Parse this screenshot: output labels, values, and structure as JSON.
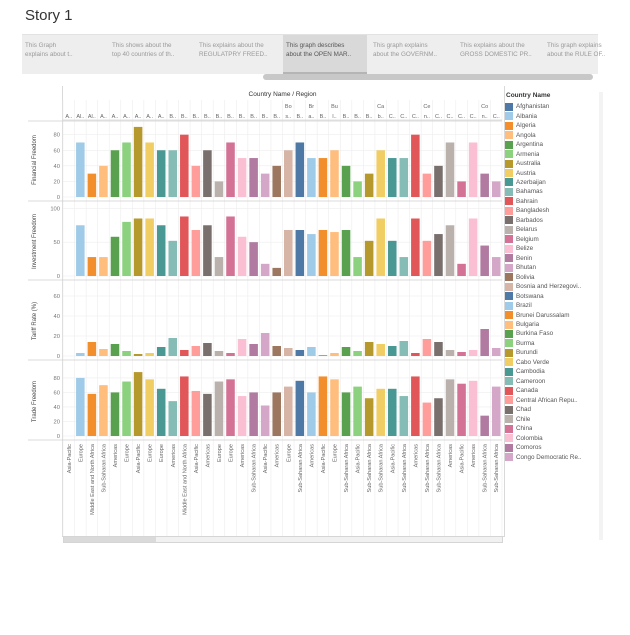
{
  "page": {
    "title": "Story 1",
    "tabs": [
      {
        "line1": "This Graph",
        "line2": "explains about t..",
        "active": false
      },
      {
        "line1": "This shows about the",
        "line2": "top 40 countries of th..",
        "active": false
      },
      {
        "line1": "This explains about the",
        "line2": "REGULATPRY FREED..",
        "active": false
      },
      {
        "line1": "This graph describes",
        "line2": "about the OPEN MAR..",
        "active": true
      },
      {
        "line1": "This graph explains",
        "line2": "about the GOVERNM..",
        "active": false
      },
      {
        "line1": "This explains about the",
        "line2": "GROSS DOMESTIC PR..",
        "active": false
      },
      {
        "line1": "This graph explains",
        "line2": "about the RULE OF..",
        "active": false
      }
    ]
  },
  "chart_data": {
    "type": "bar",
    "header": "Country Name / Region",
    "legend_title": "Country Name",
    "categories": [
      {
        "country": "Afghanistan",
        "label": "A..",
        "region": "Asia-Pacific"
      },
      {
        "country": "Albania",
        "label": "Al..",
        "region": "Europe"
      },
      {
        "country": "Algeria",
        "label": "Al..",
        "region": "Middle East and North Africa"
      },
      {
        "country": "Angola",
        "label": "A..",
        "region": "Sub-Saharan Africa"
      },
      {
        "country": "Argentina",
        "label": "A..",
        "region": "Americas"
      },
      {
        "country": "Armenia",
        "label": "A..",
        "region": "Europe"
      },
      {
        "country": "Australia",
        "label": "A..",
        "region": "Asia-Pacific"
      },
      {
        "country": "Austria",
        "label": "A..",
        "region": "Europe"
      },
      {
        "country": "Azerbaijan",
        "label": "A..",
        "region": "Europe"
      },
      {
        "country": "Bahamas",
        "label": "B..",
        "region": "Americas"
      },
      {
        "country": "Bahrain",
        "label": "B..",
        "region": "Middle East and North Africa"
      },
      {
        "country": "Bangladesh",
        "label": "B..",
        "region": "Asia-Pacific"
      },
      {
        "country": "Barbados",
        "label": "B..",
        "region": "Americas"
      },
      {
        "country": "Belarus",
        "label": "B..",
        "region": "Europe"
      },
      {
        "country": "Belgium",
        "label": "B..",
        "region": "Europe"
      },
      {
        "country": "Belize",
        "label": "B..",
        "region": "Americas"
      },
      {
        "country": "Benin",
        "label": "B..",
        "region": "Sub-Saharan Africa"
      },
      {
        "country": "Bhutan",
        "label": "B..",
        "region": "Asia-Pacific"
      },
      {
        "country": "Bolivia",
        "label": "B..",
        "region": "Americas"
      },
      {
        "country": "Bosnia and Herzegovi..",
        "label": "Bo s..",
        "region": "Europe"
      },
      {
        "country": "Botswana",
        "label": "B..",
        "region": "Sub-Saharan Africa"
      },
      {
        "country": "Brazil",
        "label": "Br a..",
        "region": "Americas"
      },
      {
        "country": "Brunei Darussalam",
        "label": "B..",
        "region": "Asia-Pacific"
      },
      {
        "country": "Bulgaria",
        "label": "Bu l..",
        "region": "Europe"
      },
      {
        "country": "Burkina Faso",
        "label": "B..",
        "region": "Sub-Saharan Africa"
      },
      {
        "country": "Burma",
        "label": "B..",
        "region": "Asia-Pacific"
      },
      {
        "country": "Burundi",
        "label": "B..",
        "region": "Sub-Saharan Africa"
      },
      {
        "country": "Cabo Verde",
        "label": "Ca b..",
        "region": "Sub-Saharan Africa"
      },
      {
        "country": "Cambodia",
        "label": "C..",
        "region": "Asia-Pacific"
      },
      {
        "country": "Cameroon",
        "label": "C..",
        "region": "Sub-Saharan Africa"
      },
      {
        "country": "Canada",
        "label": "C..",
        "region": "Americas"
      },
      {
        "country": "Central African Repu..",
        "label": "Ce n..",
        "region": "Sub-Saharan Africa"
      },
      {
        "country": "Chad",
        "label": "C..",
        "region": "Sub-Saharan Africa"
      },
      {
        "country": "Chile",
        "label": "C..",
        "region": "Americas"
      },
      {
        "country": "China",
        "label": "C..",
        "region": "Asia-Pacific"
      },
      {
        "country": "Colombia",
        "label": "C..",
        "region": "Americas"
      },
      {
        "country": "Comoros",
        "label": "Co n..",
        "region": "Sub-Saharan Africa"
      },
      {
        "country": "Congo Democratic Re..",
        "label": "C..",
        "region": "Sub-Saharan Africa"
      }
    ],
    "colors": [
      "#4e79a7",
      "#a0cbe8",
      "#f28e2b",
      "#ffbe7d",
      "#59a14f",
      "#8cd17d",
      "#b6992d",
      "#f1ce63",
      "#499894",
      "#86bcb6",
      "#e15759",
      "#ff9d9a",
      "#79706e",
      "#bab0ac",
      "#d37295",
      "#fabfd2",
      "#b07aa1",
      "#d4a6c8",
      "#9d7660",
      "#d7b5a6",
      "#4e79a7",
      "#a0cbe8",
      "#f28e2b",
      "#ffbe7d",
      "#59a14f",
      "#8cd17d",
      "#b6992d",
      "#f1ce63",
      "#499894",
      "#86bcb6",
      "#e15759",
      "#ff9d9a",
      "#79706e",
      "#bab0ac",
      "#d37295",
      "#fabfd2",
      "#b07aa1",
      "#d4a6c8"
    ],
    "panes": [
      {
        "ylabel": "Financial Freedom",
        "ylim": [
          0,
          95
        ],
        "ticks": [
          0,
          20,
          40,
          60,
          80
        ],
        "values": [
          0,
          70,
          30,
          40,
          60,
          70,
          90,
          70,
          60,
          60,
          80,
          40,
          60,
          20,
          70,
          50,
          50,
          30,
          40,
          60,
          70,
          50,
          50,
          60,
          40,
          20,
          30,
          60,
          50,
          50,
          80,
          30,
          40,
          70,
          20,
          70,
          30,
          20
        ]
      },
      {
        "ylabel": "Investment Freedom",
        "ylim": [
          0,
          102
        ],
        "ticks": [
          0,
          50,
          100
        ],
        "values": [
          0,
          75,
          28,
          28,
          58,
          80,
          85,
          85,
          75,
          52,
          88,
          68,
          75,
          28,
          88,
          58,
          50,
          18,
          12,
          68,
          68,
          62,
          68,
          65,
          68,
          28,
          52,
          85,
          52,
          28,
          85,
          52,
          62,
          75,
          18,
          85,
          45,
          28
        ]
      },
      {
        "ylabel": "Tariff Rate (%)",
        "ylim": [
          0,
          70
        ],
        "ticks": [
          0,
          20,
          40,
          60
        ],
        "values": [
          0,
          3,
          14,
          7,
          12,
          5,
          2,
          3,
          9,
          18,
          6,
          10,
          13,
          5,
          3,
          17,
          12,
          23,
          10,
          8,
          6,
          9,
          1,
          3,
          9,
          5,
          14,
          12,
          10,
          15,
          3,
          17,
          14,
          6,
          4,
          6,
          27,
          8
        ]
      },
      {
        "ylabel": "Trade Freedom",
        "ylim": [
          0,
          95
        ],
        "ticks": [
          0,
          20,
          40,
          60,
          80
        ],
        "values": [
          0,
          80,
          58,
          70,
          60,
          75,
          88,
          78,
          65,
          48,
          82,
          62,
          58,
          75,
          78,
          55,
          60,
          42,
          60,
          68,
          76,
          60,
          82,
          78,
          60,
          68,
          52,
          65,
          65,
          55,
          82,
          46,
          52,
          78,
          72,
          76,
          28,
          68
        ]
      }
    ]
  }
}
